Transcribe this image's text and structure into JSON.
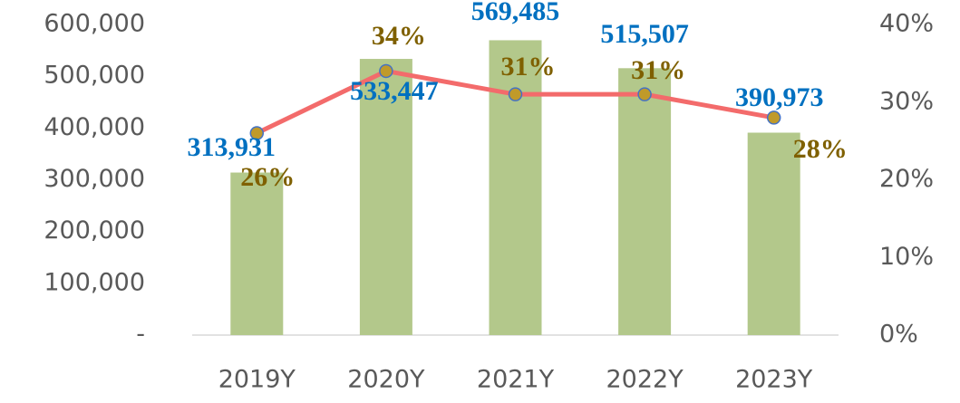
{
  "chart_data": {
    "type": "bar-line",
    "categories": [
      "2019Y",
      "2020Y",
      "2021Y",
      "2022Y",
      "2023Y"
    ],
    "series": [
      {
        "type": "bar",
        "color": "#b3c88b",
        "values": [
          313931,
          533447,
          569485,
          515507,
          390973
        ],
        "value_labels": [
          "313,931",
          "533,447",
          "569,485",
          "515,507",
          "390,973"
        ],
        "label_color": "#0070c0"
      },
      {
        "type": "line",
        "axis": "y2",
        "color": "#f36b6b",
        "marker_color": "#c09a2a",
        "values": [
          26,
          34,
          31,
          31,
          28
        ],
        "value_labels": [
          "26%",
          "34%",
          "31%",
          "31%",
          "28%"
        ],
        "label_color": "#7f6000"
      }
    ],
    "ylim": [
      0,
      600000
    ],
    "yticks": [
      {
        "value": 0,
        "label": "-"
      },
      {
        "value": 100000,
        "label": "100,000"
      },
      {
        "value": 200000,
        "label": "200,000"
      },
      {
        "value": 300000,
        "label": "300,000"
      },
      {
        "value": 400000,
        "label": "400,000"
      },
      {
        "value": 500000,
        "label": "500,000"
      },
      {
        "value": 600000,
        "label": "600,000"
      }
    ],
    "y2lim": [
      0,
      40
    ],
    "y2ticks": [
      {
        "value": 0,
        "label": "0%"
      },
      {
        "value": 10,
        "label": "10%"
      },
      {
        "value": 20,
        "label": "20%"
      },
      {
        "value": 30,
        "label": "30%"
      },
      {
        "value": 40,
        "label": "40%"
      }
    ]
  }
}
